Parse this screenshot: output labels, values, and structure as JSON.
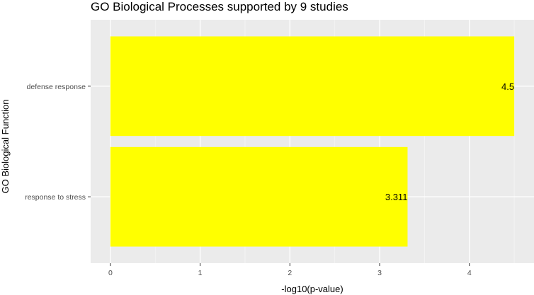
{
  "chart_data": {
    "type": "bar",
    "orientation": "horizontal",
    "title": "GO Biological Processes supported by 9 studies",
    "xlabel": "-log10(p-value)",
    "ylabel": "GO Biological Function",
    "categories": [
      "defense response",
      "response to stress"
    ],
    "values": [
      4.5,
      3.311
    ],
    "data_labels": [
      "4.5",
      "3.311"
    ],
    "xlim": [
      -0.22,
      4.72
    ],
    "x_ticks": [
      0,
      1,
      2,
      3,
      4
    ],
    "x_tick_labels": [
      "0",
      "1",
      "2",
      "3",
      "4"
    ],
    "grid": true,
    "legend": "none",
    "colors": {
      "bar": "#ffff00",
      "panel_background": "#ebebeb",
      "grid_major": "#ffffff",
      "grid_minor": "#f5f5f5"
    }
  }
}
